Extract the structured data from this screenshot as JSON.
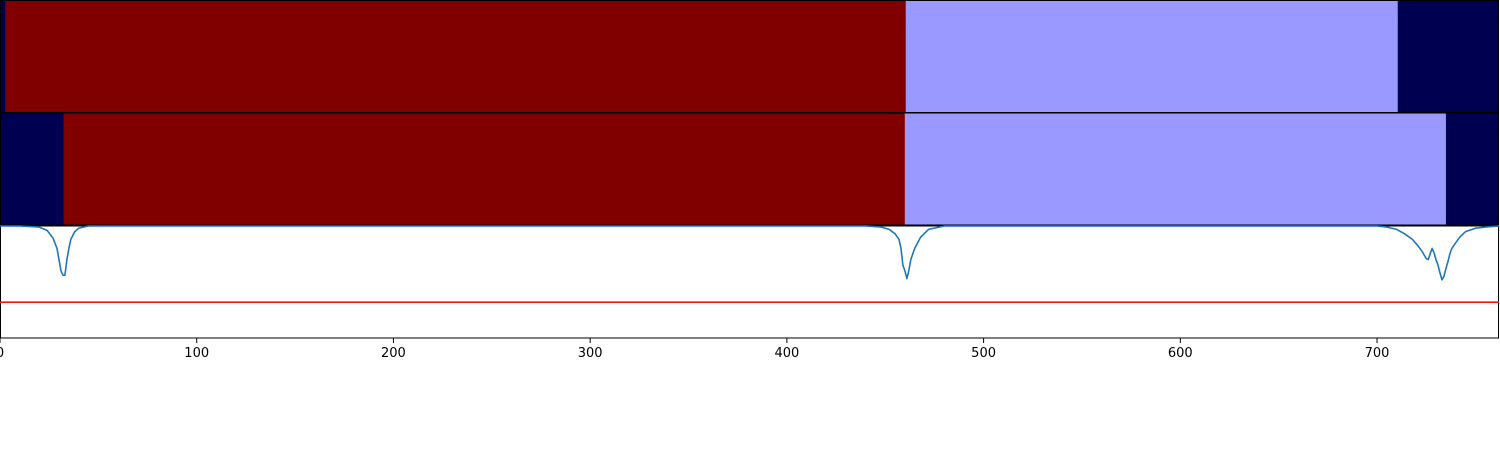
{
  "chart_data": {
    "type": "segmentation-timeline",
    "xlim": [
      0,
      762
    ],
    "x_ticks": [
      0,
      100,
      200,
      300,
      400,
      500,
      600,
      700
    ],
    "x_tick_labels": [
      "0",
      "100",
      "200",
      "300",
      "400",
      "500",
      "600",
      "700"
    ],
    "segment_rows": [
      {
        "segments": [
          {
            "start": 0,
            "end": 3,
            "color": "#000050"
          },
          {
            "start": 3,
            "end": 460.5,
            "color": "#800000"
          },
          {
            "start": 460.5,
            "end": 710.5,
            "color": "#9999ff"
          },
          {
            "start": 710.5,
            "end": 762,
            "color": "#000050"
          }
        ]
      },
      {
        "segments": [
          {
            "start": 0,
            "end": 32.5,
            "color": "#000050"
          },
          {
            "start": 32.5,
            "end": 460,
            "color": "#800000"
          },
          {
            "start": 460,
            "end": 735,
            "color": "#9999ff"
          },
          {
            "start": 735,
            "end": 762,
            "color": "#000050"
          }
        ]
      }
    ],
    "line_panel": {
      "ylim": [
        0,
        1
      ],
      "threshold": {
        "value": 0.32,
        "color": "#e41a1c"
      },
      "series": [
        {
          "color": "#1f77b4",
          "x": [
            0,
            10,
            20,
            24,
            27,
            29,
            30,
            31,
            32,
            33,
            34,
            35,
            36,
            38,
            40,
            45,
            50,
            100,
            200,
            300,
            400,
            440,
            448,
            452,
            455,
            457,
            458,
            459,
            460,
            461,
            462,
            463,
            465,
            468,
            472,
            480,
            500,
            600,
            700,
            705,
            710,
            714,
            718,
            721,
            723,
            725,
            726,
            727,
            728,
            729,
            730,
            731,
            732,
            733,
            734,
            735,
            736,
            737,
            738,
            740,
            742,
            745,
            750,
            755,
            762
          ],
          "y": [
            1.0,
            1.0,
            0.99,
            0.96,
            0.89,
            0.8,
            0.7,
            0.6,
            0.56,
            0.56,
            0.7,
            0.8,
            0.88,
            0.95,
            0.98,
            1.0,
            1.0,
            1.0,
            1.0,
            1.0,
            1.0,
            1.0,
            0.99,
            0.97,
            0.93,
            0.88,
            0.8,
            0.65,
            0.6,
            0.53,
            0.6,
            0.7,
            0.8,
            0.9,
            0.97,
            1.0,
            1.0,
            1.0,
            1.0,
            0.99,
            0.97,
            0.93,
            0.88,
            0.82,
            0.77,
            0.71,
            0.7,
            0.75,
            0.8,
            0.76,
            0.7,
            0.65,
            0.58,
            0.52,
            0.55,
            0.62,
            0.68,
            0.75,
            0.8,
            0.85,
            0.9,
            0.95,
            0.98,
            0.99,
            1.0
          ]
        }
      ]
    }
  }
}
